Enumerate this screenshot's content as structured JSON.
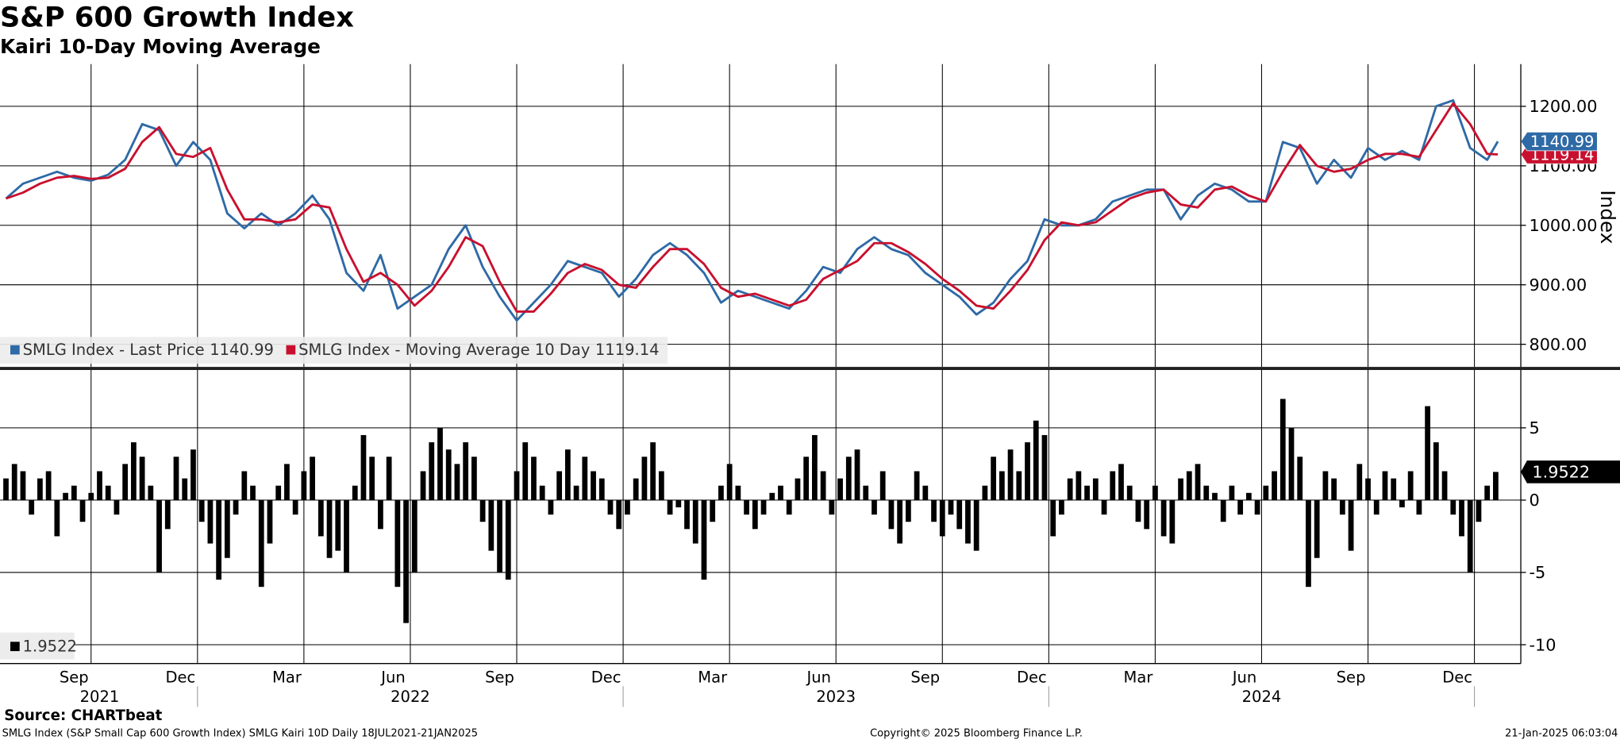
{
  "chart_data": [
    {
      "type": "line",
      "title": "S&P 600 Growth Index",
      "subtitle": "Kairi 10-Day Moving Average",
      "y_label": "Index",
      "x": [
        2021.55,
        2021.59,
        2021.63,
        2021.67,
        2021.71,
        2021.75,
        2021.79,
        2021.83,
        2021.87,
        2021.91,
        2021.95,
        2021.99,
        2022.03,
        2022.07,
        2022.11,
        2022.15,
        2022.19,
        2022.23,
        2022.27,
        2022.31,
        2022.35,
        2022.39,
        2022.43,
        2022.47,
        2022.51,
        2022.55,
        2022.59,
        2022.63,
        2022.67,
        2022.71,
        2022.75,
        2022.79,
        2022.83,
        2022.87,
        2022.91,
        2022.95,
        2022.99,
        2023.03,
        2023.07,
        2023.11,
        2023.15,
        2023.19,
        2023.23,
        2023.27,
        2023.31,
        2023.35,
        2023.39,
        2023.43,
        2023.47,
        2023.51,
        2023.55,
        2023.59,
        2023.63,
        2023.67,
        2023.71,
        2023.75,
        2023.79,
        2023.83,
        2023.87,
        2023.91,
        2023.95,
        2023.99,
        2024.03,
        2024.07,
        2024.11,
        2024.15,
        2024.19,
        2024.23,
        2024.27,
        2024.31,
        2024.35,
        2024.39,
        2024.43,
        2024.47,
        2024.51,
        2024.55,
        2024.59,
        2024.63,
        2024.67,
        2024.71,
        2024.75,
        2024.79,
        2024.83,
        2024.87,
        2024.91,
        2024.95,
        2024.99,
        2025.03,
        2025.055
      ],
      "series": [
        {
          "name": "SMLG Index - Last Price",
          "color": "#2e6aa6",
          "values": [
            1045,
            1070,
            1080,
            1090,
            1080,
            1075,
            1085,
            1110,
            1170,
            1160,
            1100,
            1140,
            1110,
            1020,
            995,
            1020,
            1000,
            1020,
            1050,
            1010,
            920,
            890,
            950,
            860,
            880,
            900,
            960,
            1000,
            930,
            880,
            840,
            870,
            900,
            940,
            930,
            920,
            880,
            910,
            950,
            970,
            950,
            920,
            870,
            890,
            880,
            870,
            860,
            890,
            930,
            920,
            960,
            980,
            960,
            950,
            920,
            900,
            880,
            850,
            870,
            910,
            940,
            1010,
            1000,
            1000,
            1010,
            1040,
            1050,
            1060,
            1060,
            1010,
            1050,
            1070,
            1060,
            1040,
            1040,
            1140,
            1130,
            1070,
            1110,
            1080,
            1130,
            1110,
            1125,
            1110,
            1200,
            1210,
            1130,
            1110,
            1140.99
          ]
        },
        {
          "name": "SMLG Index - Moving Average 10 Day",
          "color": "#c8102e",
          "values": [
            1045,
            1055,
            1070,
            1080,
            1083,
            1078,
            1080,
            1095,
            1140,
            1165,
            1120,
            1115,
            1130,
            1060,
            1010,
            1010,
            1005,
            1010,
            1035,
            1030,
            960,
            905,
            920,
            900,
            865,
            890,
            930,
            980,
            965,
            905,
            855,
            855,
            885,
            920,
            935,
            925,
            900,
            895,
            930,
            960,
            960,
            935,
            895,
            880,
            885,
            875,
            865,
            875,
            910,
            925,
            940,
            970,
            970,
            955,
            935,
            910,
            890,
            865,
            860,
            890,
            925,
            975,
            1005,
            1000,
            1005,
            1025,
            1045,
            1055,
            1060,
            1035,
            1030,
            1060,
            1065,
            1050,
            1040,
            1090,
            1135,
            1100,
            1090,
            1095,
            1110,
            1120,
            1120,
            1115,
            1160,
            1205,
            1170,
            1120,
            1119.14
          ]
        }
      ],
      "xlim": [
        2021.536,
        2025.109
      ],
      "xgrid": [
        2021.75,
        2022,
        2022.25,
        2022.5,
        2022.75,
        2023,
        2023.25,
        2023.5,
        2023.75,
        2024,
        2024.25,
        2024.5,
        2024.75,
        2025
      ],
      "ylim": [
        762,
        1271
      ],
      "yticks": [
        {
          "value": 800,
          "label": "800.00"
        },
        {
          "value": 900,
          "label": "900.00"
        },
        {
          "value": 1000,
          "label": "1000.00"
        },
        {
          "value": 1100,
          "label": "1100.00"
        },
        {
          "value": 1200,
          "label": "1200.00"
        }
      ],
      "grid": true
    },
    {
      "type": "bar",
      "color": "#000000",
      "x": [
        2021.55,
        2021.57,
        2021.59,
        2021.61,
        2021.63,
        2021.65,
        2021.67,
        2021.69,
        2021.71,
        2021.73,
        2021.75,
        2021.77,
        2021.79,
        2021.81,
        2021.83,
        2021.85,
        2021.87,
        2021.89,
        2021.91,
        2021.93,
        2021.95,
        2021.97,
        2021.99,
        2022.01,
        2022.03,
        2022.05,
        2022.07,
        2022.09,
        2022.11,
        2022.13,
        2022.15,
        2022.17,
        2022.19,
        2022.21,
        2022.23,
        2022.25,
        2022.27,
        2022.29,
        2022.31,
        2022.33,
        2022.35,
        2022.37,
        2022.39,
        2022.41,
        2022.43,
        2022.45,
        2022.47,
        2022.49,
        2022.51,
        2022.53,
        2022.55,
        2022.57,
        2022.59,
        2022.61,
        2022.63,
        2022.65,
        2022.67,
        2022.69,
        2022.71,
        2022.73,
        2022.75,
        2022.77,
        2022.79,
        2022.81,
        2022.83,
        2022.85,
        2022.87,
        2022.89,
        2022.91,
        2022.93,
        2022.95,
        2022.97,
        2022.99,
        2023.01,
        2023.03,
        2023.05,
        2023.07,
        2023.09,
        2023.11,
        2023.13,
        2023.15,
        2023.17,
        2023.19,
        2023.21,
        2023.23,
        2023.25,
        2023.27,
        2023.29,
        2023.31,
        2023.33,
        2023.35,
        2023.37,
        2023.39,
        2023.41,
        2023.43,
        2023.45,
        2023.47,
        2023.49,
        2023.51,
        2023.53,
        2023.55,
        2023.57,
        2023.59,
        2023.61,
        2023.63,
        2023.65,
        2023.67,
        2023.69,
        2023.71,
        2023.73,
        2023.75,
        2023.77,
        2023.79,
        2023.81,
        2023.83,
        2023.85,
        2023.87,
        2023.89,
        2023.91,
        2023.93,
        2023.95,
        2023.97,
        2023.99,
        2024.01,
        2024.03,
        2024.05,
        2024.07,
        2024.09,
        2024.11,
        2024.13,
        2024.15,
        2024.17,
        2024.19,
        2024.21,
        2024.23,
        2024.25,
        2024.27,
        2024.29,
        2024.31,
        2024.33,
        2024.35,
        2024.37,
        2024.39,
        2024.41,
        2024.43,
        2024.45,
        2024.47,
        2024.49,
        2024.51,
        2024.53,
        2024.55,
        2024.57,
        2024.59,
        2024.61,
        2024.63,
        2024.65,
        2024.67,
        2024.69,
        2024.71,
        2024.73,
        2024.75,
        2024.77,
        2024.79,
        2024.81,
        2024.83,
        2024.85,
        2024.87,
        2024.89,
        2024.91,
        2024.93,
        2024.95,
        2024.97,
        2024.99,
        2025.01,
        2025.03,
        2025.05
      ],
      "values": [
        1.5,
        2.5,
        2,
        -1,
        1.5,
        2,
        -2.5,
        0.5,
        1,
        -1.5,
        0.5,
        2,
        1,
        -1,
        2.5,
        4,
        3,
        1,
        -5,
        -2,
        3,
        1.5,
        3.5,
        -1.5,
        -3,
        -5.5,
        -4,
        -1,
        2,
        1,
        -6,
        -3,
        1,
        2.5,
        -1,
        2,
        3,
        -2.5,
        -4,
        -3.5,
        -5,
        1,
        4.5,
        3,
        -2,
        3,
        -6,
        -8.5,
        -5,
        2,
        4,
        5,
        3.5,
        2.5,
        4,
        3,
        -1.5,
        -3.5,
        -5,
        -5.5,
        2,
        4,
        3,
        1,
        -1,
        2,
        3.5,
        1,
        3,
        2,
        1.5,
        -1,
        -2,
        -1,
        1.5,
        3,
        4,
        2,
        -1,
        -0.5,
        -2,
        -3,
        -5.5,
        -1.5,
        1,
        2.5,
        1,
        -1,
        -2,
        -1,
        0.5,
        1,
        -1,
        1.5,
        3,
        4.5,
        2,
        -1,
        1.5,
        3,
        3.5,
        1,
        -1,
        2,
        -2,
        -3,
        -1.5,
        2,
        1,
        -1.5,
        -2.5,
        -1,
        -2,
        -3,
        -3.5,
        1,
        3,
        2,
        3.5,
        2,
        4,
        5.5,
        4.5,
        -2.5,
        -1,
        1.5,
        2,
        1,
        1.5,
        -1,
        2,
        2.5,
        1,
        -1.5,
        -2,
        1,
        -2.5,
        -3,
        1.5,
        2,
        2.5,
        1,
        0.5,
        -1.5,
        1,
        -1,
        0.5,
        -1,
        1,
        2,
        7,
        5,
        3,
        -6,
        -4,
        2,
        1.5,
        -1,
        -3.5,
        2.5,
        1.5,
        -1,
        2,
        1.5,
        -0.5,
        2,
        -1,
        6.5,
        4,
        2,
        -1,
        -2.5,
        -5,
        -1.5,
        1,
        1.9522
      ],
      "xlim": [
        2021.536,
        2025.109
      ],
      "xgrid": [
        2021.75,
        2022,
        2022.25,
        2022.5,
        2022.75,
        2023,
        2023.25,
        2023.5,
        2023.75,
        2024,
        2024.25,
        2024.5,
        2024.75,
        2025
      ],
      "xticks": [
        {
          "value": 2021.71,
          "label": "Sep"
        },
        {
          "value": 2021.96,
          "label": "Dec"
        },
        {
          "value": 2022.21,
          "label": "Mar"
        },
        {
          "value": 2022.46,
          "label": "Jun"
        },
        {
          "value": 2022.71,
          "label": "Sep"
        },
        {
          "value": 2022.96,
          "label": "Dec"
        },
        {
          "value": 2023.21,
          "label": "Mar"
        },
        {
          "value": 2023.46,
          "label": "Jun"
        },
        {
          "value": 2023.71,
          "label": "Sep"
        },
        {
          "value": 2023.96,
          "label": "Dec"
        },
        {
          "value": 2024.21,
          "label": "Mar"
        },
        {
          "value": 2024.46,
          "label": "Jun"
        },
        {
          "value": 2024.71,
          "label": "Sep"
        },
        {
          "value": 2024.96,
          "label": "Dec"
        }
      ],
      "years": [
        {
          "value": 2021.77,
          "label": "2021"
        },
        {
          "value": 2022.5,
          "label": "2022"
        },
        {
          "value": 2023.5,
          "label": "2023"
        },
        {
          "value": 2024.5,
          "label": "2024"
        }
      ],
      "ylim": [
        -11.3,
        9
      ],
      "yticks": [
        -10,
        -5,
        0,
        5
      ],
      "grid": true
    }
  ],
  "footer": {
    "source": "Source: CHARTbeat",
    "description": "SMLG Index (S&P Small Cap 600 Growth Index) SMLG Kairi 10D  Daily 18JUL2021-21JAN2025",
    "copyright": "Copyright© 2025 Bloomberg Finance L.P.",
    "timestamp": "21-Jan-2025 06:03:04"
  }
}
